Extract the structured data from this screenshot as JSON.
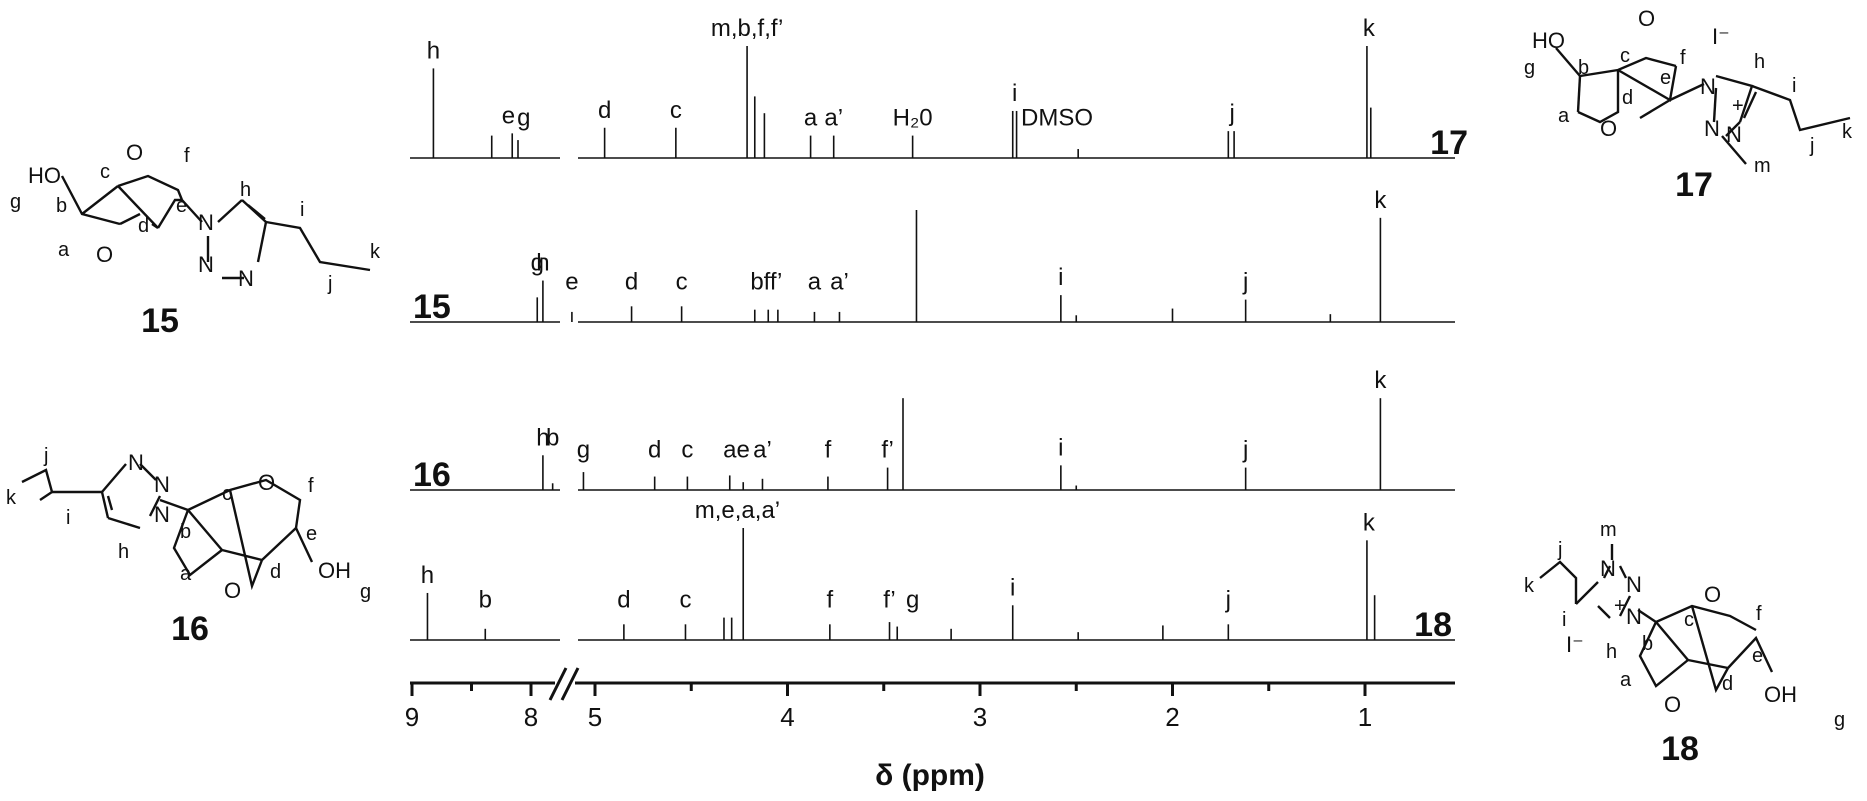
{
  "chart_data": {
    "type": "line",
    "title": "",
    "xlabel": "δ (ppm)",
    "ylabel": "",
    "x_reversed": true,
    "x_break": [
      5.8,
      7.8
    ],
    "xlim": [
      9.0,
      0.75
    ],
    "x_ticks": [
      9,
      8,
      5,
      4,
      3,
      2,
      1
    ],
    "series": [
      {
        "name": "17",
        "peaks": [
          {
            "ppm": 8.82,
            "h": 0.8
          },
          {
            "ppm": 8.33,
            "h": 0.2
          },
          {
            "ppm": 5.43,
            "h": 0.22
          },
          {
            "ppm": 5.4,
            "h": 0.16
          },
          {
            "ppm": 4.95,
            "h": 0.27
          },
          {
            "ppm": 4.58,
            "h": 0.27
          },
          {
            "ppm": 4.21,
            "h": 1.0
          },
          {
            "ppm": 4.17,
            "h": 0.55
          },
          {
            "ppm": 4.12,
            "h": 0.4
          },
          {
            "ppm": 3.88,
            "h": 0.2
          },
          {
            "ppm": 3.76,
            "h": 0.2
          },
          {
            "ppm": 3.35,
            "h": 0.2
          },
          {
            "ppm": 2.83,
            "h": 0.42
          },
          {
            "ppm": 2.81,
            "h": 0.42
          },
          {
            "ppm": 2.49,
            "h": 0.08
          },
          {
            "ppm": 1.71,
            "h": 0.24
          },
          {
            "ppm": 1.68,
            "h": 0.24
          },
          {
            "ppm": 0.99,
            "h": 1.0
          },
          {
            "ppm": 0.97,
            "h": 0.45
          }
        ],
        "labels": [
          {
            "text": "h",
            "ppm": 8.82
          },
          {
            "text": "e",
            "ppm": 5.45
          },
          {
            "text": "g",
            "ppm": 5.37
          },
          {
            "text": "d",
            "ppm": 4.95
          },
          {
            "text": "c",
            "ppm": 4.58
          },
          {
            "text": "m,b,f,f’",
            "ppm": 4.21
          },
          {
            "text": "a",
            "ppm": 3.88
          },
          {
            "text": "a’",
            "ppm": 3.76
          },
          {
            "text": "H₂0",
            "ppm": 3.35
          },
          {
            "text": "i",
            "ppm": 2.82
          },
          {
            "text": "DMSO",
            "ppm": 2.6
          },
          {
            "text": "j",
            "ppm": 1.69
          },
          {
            "text": "k",
            "ppm": 0.98
          }
        ]
      },
      {
        "name": "15",
        "peaks": [
          {
            "ppm": 7.9,
            "h": 0.37
          },
          {
            "ppm": 5.3,
            "h": 0.22
          },
          {
            "ppm": 5.12,
            "h": 0.09
          },
          {
            "ppm": 4.81,
            "h": 0.14
          },
          {
            "ppm": 4.55,
            "h": 0.14
          },
          {
            "ppm": 4.17,
            "h": 0.11
          },
          {
            "ppm": 4.1,
            "h": 0.11
          },
          {
            "ppm": 4.05,
            "h": 0.11
          },
          {
            "ppm": 3.86,
            "h": 0.09
          },
          {
            "ppm": 3.73,
            "h": 0.09
          },
          {
            "ppm": 3.33,
            "h": 1.0
          },
          {
            "ppm": 2.58,
            "h": 0.24
          },
          {
            "ppm": 2.5,
            "h": 0.06
          },
          {
            "ppm": 2.0,
            "h": 0.12
          },
          {
            "ppm": 1.62,
            "h": 0.2
          },
          {
            "ppm": 1.18,
            "h": 0.07
          },
          {
            "ppm": 0.92,
            "h": 0.93
          }
        ],
        "labels": [
          {
            "text": "h",
            "ppm": 7.9
          },
          {
            "text": "g",
            "ppm": 5.3
          },
          {
            "text": "e",
            "ppm": 5.12
          },
          {
            "text": "d",
            "ppm": 4.81
          },
          {
            "text": "c",
            "ppm": 4.55
          },
          {
            "text": "bff’",
            "ppm": 4.11
          },
          {
            "text": "a",
            "ppm": 3.86
          },
          {
            "text": "a’",
            "ppm": 3.73
          },
          {
            "text": "i",
            "ppm": 2.58
          },
          {
            "text": "j",
            "ppm": 1.62
          },
          {
            "text": "k",
            "ppm": 0.92
          }
        ]
      },
      {
        "name": "16",
        "peaks": [
          {
            "ppm": 7.9,
            "h": 0.31
          },
          {
            "ppm": 5.22,
            "h": 0.06
          },
          {
            "ppm": 5.06,
            "h": 0.16
          },
          {
            "ppm": 4.69,
            "h": 0.12
          },
          {
            "ppm": 4.52,
            "h": 0.12
          },
          {
            "ppm": 4.3,
            "h": 0.13
          },
          {
            "ppm": 4.23,
            "h": 0.07
          },
          {
            "ppm": 4.13,
            "h": 0.1
          },
          {
            "ppm": 3.79,
            "h": 0.12
          },
          {
            "ppm": 3.48,
            "h": 0.2
          },
          {
            "ppm": 3.4,
            "h": 0.82
          },
          {
            "ppm": 2.58,
            "h": 0.22
          },
          {
            "ppm": 2.5,
            "h": 0.04
          },
          {
            "ppm": 1.62,
            "h": 0.2
          },
          {
            "ppm": 0.92,
            "h": 0.82
          }
        ],
        "labels": [
          {
            "text": "h",
            "ppm": 7.9
          },
          {
            "text": "b",
            "ppm": 5.22
          },
          {
            "text": "g",
            "ppm": 5.06
          },
          {
            "text": "d",
            "ppm": 4.69
          },
          {
            "text": "c",
            "ppm": 4.52
          },
          {
            "text": "a",
            "ppm": 4.3
          },
          {
            "text": "e",
            "ppm": 4.23
          },
          {
            "text": "a’",
            "ppm": 4.13
          },
          {
            "text": "f",
            "ppm": 3.79
          },
          {
            "text": "f’",
            "ppm": 3.48
          },
          {
            "text": "i",
            "ppm": 2.58
          },
          {
            "text": "j",
            "ppm": 1.62
          },
          {
            "text": "k",
            "ppm": 0.92
          }
        ]
      },
      {
        "name": "18",
        "peaks": [
          {
            "ppm": 8.87,
            "h": 0.42
          },
          {
            "ppm": 5.57,
            "h": 0.1
          },
          {
            "ppm": 4.85,
            "h": 0.14
          },
          {
            "ppm": 4.53,
            "h": 0.14
          },
          {
            "ppm": 4.33,
            "h": 0.2
          },
          {
            "ppm": 4.29,
            "h": 0.2
          },
          {
            "ppm": 4.23,
            "h": 1.0
          },
          {
            "ppm": 3.78,
            "h": 0.14
          },
          {
            "ppm": 3.47,
            "h": 0.16
          },
          {
            "ppm": 3.43,
            "h": 0.12
          },
          {
            "ppm": 3.15,
            "h": 0.1
          },
          {
            "ppm": 2.83,
            "h": 0.31
          },
          {
            "ppm": 2.49,
            "h": 0.07
          },
          {
            "ppm": 2.05,
            "h": 0.13
          },
          {
            "ppm": 1.71,
            "h": 0.14
          },
          {
            "ppm": 0.99,
            "h": 0.89
          },
          {
            "ppm": 0.95,
            "h": 0.4
          }
        ],
        "labels": [
          {
            "text": "h",
            "ppm": 8.87
          },
          {
            "text": "b",
            "ppm": 5.57
          },
          {
            "text": "d",
            "ppm": 4.85
          },
          {
            "text": "c",
            "ppm": 4.53
          },
          {
            "text": "m,e,a,a’",
            "ppm": 4.26
          },
          {
            "text": "f",
            "ppm": 3.78
          },
          {
            "text": "f’",
            "ppm": 3.47
          },
          {
            "text": "g",
            "ppm": 3.35
          },
          {
            "text": "i",
            "ppm": 2.83
          },
          {
            "text": "j",
            "ppm": 1.71
          },
          {
            "text": "k",
            "ppm": 0.98
          }
        ]
      }
    ]
  },
  "structures": {
    "s15": {
      "number": "15",
      "atoms": {
        "ho": "HO",
        "g": "g",
        "b": "b",
        "c": "c",
        "o_top": "O",
        "f": "f",
        "e": "e",
        "a": "a",
        "o_bot": "O",
        "d": "d",
        "n1": "N",
        "h": "h",
        "n2": "N",
        "n3": "N",
        "i": "i",
        "j": "j",
        "k": "k"
      }
    },
    "s16": {
      "number": "16",
      "atoms": {
        "j": "j",
        "k": "k",
        "n3": "N",
        "n2": "N",
        "i": "i",
        "n1": "N",
        "h": "h",
        "c": "c",
        "o_top": "O",
        "f": "f",
        "b": "b",
        "e": "e",
        "oh": "OH",
        "g": "g",
        "a": "a",
        "d": "d",
        "o_bot": "O"
      }
    },
    "s17": {
      "number": "17",
      "atoms": {
        "ho": "HO",
        "g": "g",
        "o_top": "O",
        "f": "f",
        "iodide": "I⁻",
        "c": "c",
        "b": "b",
        "e": "e",
        "h": "h",
        "n1": "N",
        "plus": "+",
        "i": "i",
        "a": "a",
        "o_bot": "O",
        "d": "d",
        "n3": "N",
        "n2": "N",
        "m": "m",
        "j": "j",
        "k": "k"
      }
    },
    "s18": {
      "number": "18",
      "atoms": {
        "m": "m",
        "j": "j",
        "n3": "N",
        "n2": "N",
        "k": "k",
        "plus": "+",
        "n1": "N",
        "i": "i",
        "o_top": "O",
        "f": "f",
        "iodide": "I⁻",
        "c": "c",
        "h": "h",
        "b": "b",
        "e": "e",
        "oh": "OH",
        "a": "a",
        "d": "d",
        "o_bot": "O",
        "g": "g"
      }
    }
  }
}
